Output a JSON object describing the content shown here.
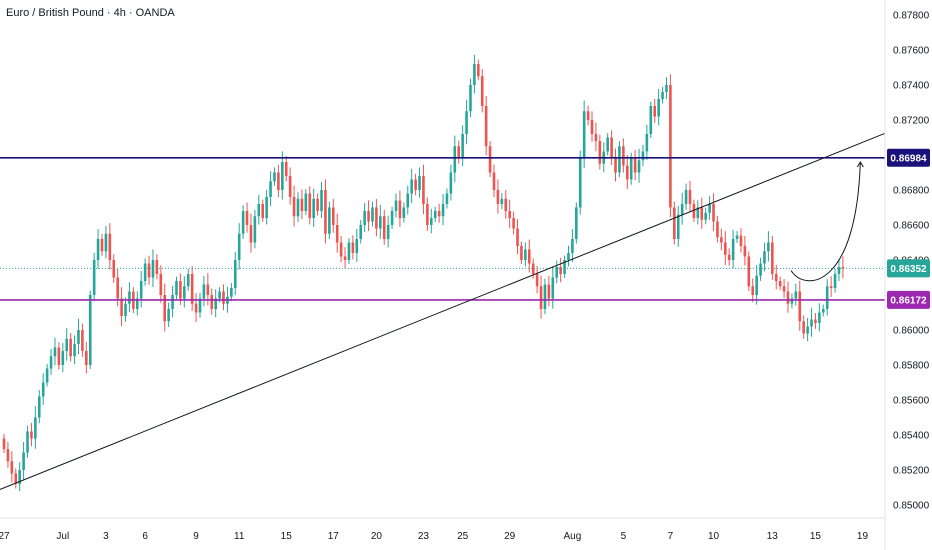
{
  "header": {
    "title": "Euro / British Pound · 4h · OANDA"
  },
  "colors": {
    "up": "#26a69a",
    "down": "#ef5350",
    "resistance": "#1a127a",
    "support": "#9c27b0",
    "current": "#26a69a",
    "trendline": "#131722"
  },
  "chart_data": {
    "type": "candlestick",
    "symbol": "Euro / British Pound",
    "timeframe": "4h",
    "broker": "OANDA",
    "ylim": [
      0.849,
      0.879
    ],
    "y_ticks": [
      "0.85000",
      "0.85200",
      "0.85400",
      "0.85600",
      "0.85800",
      "0.86000",
      "0.86200",
      "0.86400",
      "0.86600",
      "0.86800",
      "0.87000",
      "0.87200",
      "0.87400",
      "0.87600",
      "0.87800"
    ],
    "x_ticks": [
      "27",
      "Jul",
      "3",
      "6",
      "9",
      "11",
      "15",
      "17",
      "20",
      "23",
      "25",
      "29",
      "Aug",
      "5",
      "7",
      "10",
      "13",
      "15",
      "19"
    ],
    "x_tick_bar_index": [
      0,
      15,
      26,
      36,
      49,
      60,
      72,
      84,
      95,
      107,
      117,
      129,
      145,
      158,
      170,
      181,
      196,
      207,
      219
    ],
    "levels": [
      {
        "label": "0.86984",
        "value": 0.86984,
        "role": "resistance"
      },
      {
        "label": "0.86172",
        "value": 0.86172,
        "role": "support"
      },
      {
        "label": "0.86352",
        "value": 0.86352,
        "role": "current"
      }
    ],
    "trendline": [
      [
        0.8508,
        -2
      ],
      [
        0.8709,
        221
      ]
    ],
    "projection_arrow": {
      "from": [
        0.862,
        212
      ],
      "to": [
        0.8696,
        221
      ]
    },
    "closes": [
      0.8532,
      0.8525,
      0.8518,
      0.8512,
      0.852,
      0.853,
      0.8542,
      0.8538,
      0.855,
      0.8562,
      0.857,
      0.8578,
      0.8585,
      0.859,
      0.858,
      0.8588,
      0.8595,
      0.8585,
      0.8592,
      0.86,
      0.8588,
      0.858,
      0.862,
      0.864,
      0.8652,
      0.8645,
      0.8655,
      0.864,
      0.863,
      0.8618,
      0.8608,
      0.8615,
      0.8622,
      0.8612,
      0.8618,
      0.8628,
      0.8638,
      0.863,
      0.864,
      0.8632,
      0.862,
      0.8605,
      0.8612,
      0.862,
      0.8628,
      0.8618,
      0.8625,
      0.8632,
      0.8615,
      0.861,
      0.8618,
      0.8626,
      0.862,
      0.8612,
      0.8618,
      0.8622,
      0.8615,
      0.8619,
      0.8624,
      0.864,
      0.8655,
      0.8668,
      0.866,
      0.865,
      0.8665,
      0.8672,
      0.8664,
      0.8676,
      0.8685,
      0.869,
      0.868,
      0.8696,
      0.8688,
      0.8676,
      0.8665,
      0.8675,
      0.8668,
      0.8678,
      0.8664,
      0.8675,
      0.8668,
      0.868,
      0.8655,
      0.867,
      0.866,
      0.865,
      0.8642,
      0.864,
      0.865,
      0.8644,
      0.8652,
      0.866,
      0.8668,
      0.8662,
      0.867,
      0.8658,
      0.8665,
      0.8652,
      0.866,
      0.8668,
      0.8674,
      0.8664,
      0.867,
      0.8678,
      0.8686,
      0.868,
      0.8688,
      0.8672,
      0.866,
      0.8664,
      0.8668,
      0.8665,
      0.8672,
      0.8678,
      0.869,
      0.8705,
      0.8698,
      0.8712,
      0.8725,
      0.874,
      0.8752,
      0.8745,
      0.8728,
      0.8705,
      0.869,
      0.868,
      0.8672,
      0.8675,
      0.8668,
      0.8664,
      0.8658,
      0.8648,
      0.864,
      0.8646,
      0.8638,
      0.8632,
      0.8625,
      0.8612,
      0.8626,
      0.8618,
      0.863,
      0.8636,
      0.8632,
      0.864,
      0.8644,
      0.8652,
      0.867,
      0.8698,
      0.8725,
      0.872,
      0.8712,
      0.8708,
      0.8695,
      0.8702,
      0.871,
      0.8698,
      0.869,
      0.8705,
      0.8694,
      0.8686,
      0.8698,
      0.869,
      0.8697,
      0.8702,
      0.8712,
      0.8728,
      0.8722,
      0.8732,
      0.8736,
      0.874,
      0.867,
      0.8652,
      0.8666,
      0.8672,
      0.868,
      0.8672,
      0.8664,
      0.867,
      0.8663,
      0.8667,
      0.8672,
      0.8662,
      0.8653,
      0.865,
      0.8643,
      0.864,
      0.8652,
      0.8654,
      0.8648,
      0.8642,
      0.8625,
      0.862,
      0.8631,
      0.8638,
      0.8645,
      0.865,
      0.8632,
      0.8628,
      0.8625,
      0.8622,
      0.8615,
      0.8618,
      0.8622,
      0.8605,
      0.8598,
      0.8602,
      0.8606,
      0.8604,
      0.861,
      0.8612,
      0.8625,
      0.8624,
      0.8632,
      0.8636,
      0.8635
    ]
  }
}
